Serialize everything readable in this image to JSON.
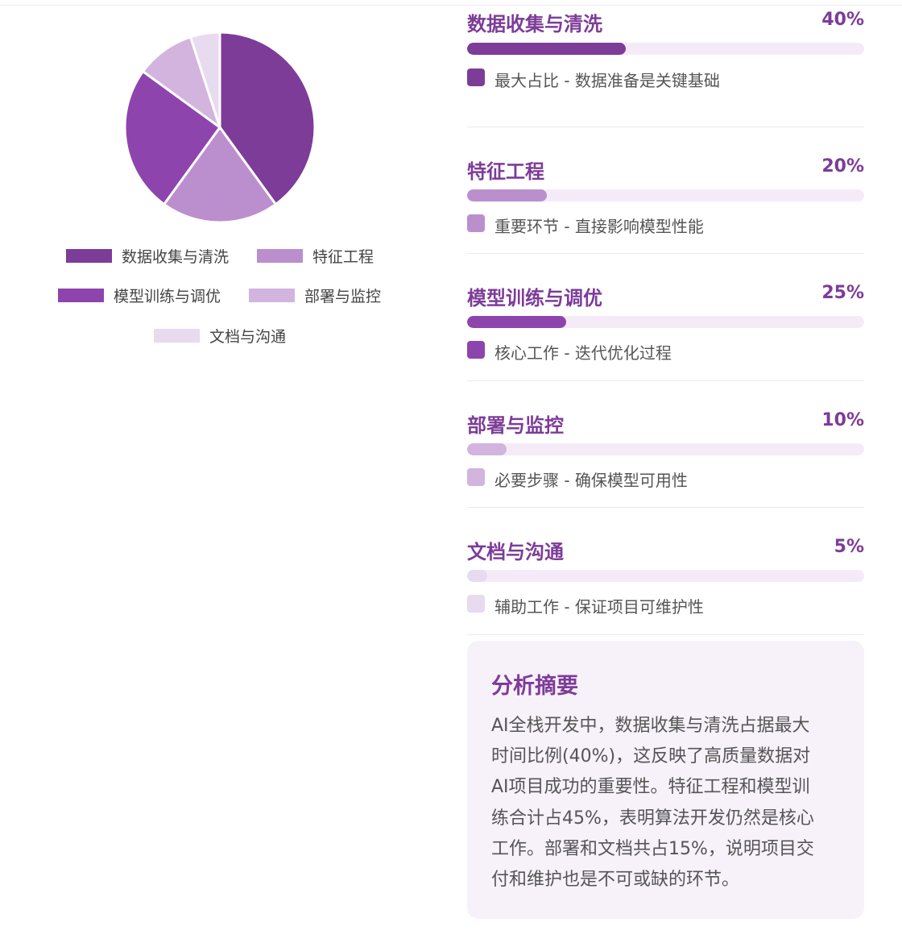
{
  "colors": {
    "accent": "#7d3c98",
    "track": "#f5ebf8",
    "divider": "#ebebeb",
    "summary_bg": "#f7f1f9"
  },
  "chart_data": {
    "type": "pie",
    "labels": [
      "数据收集与清洗",
      "特征工程",
      "模型训练与调优",
      "部署与监控",
      "文档与沟通"
    ],
    "values": [
      40,
      20,
      25,
      10,
      5
    ],
    "colors": [
      "#7d3c98",
      "#bb8fce",
      "#8e44ad",
      "#d2b4de",
      "#e8daef"
    ],
    "legend": "bottom"
  },
  "breakdown": [
    {
      "name": "数据收集与清洗",
      "pct_label": "40%",
      "value": 40,
      "color": "#7d3c98",
      "desc": "最大占比 - 数据准备是关键基础"
    },
    {
      "name": "特征工程",
      "pct_label": "20%",
      "value": 20,
      "color": "#bb8fce",
      "desc": "重要环节 - 直接影响模型性能"
    },
    {
      "name": "模型训练与调优",
      "pct_label": "25%",
      "value": 25,
      "color": "#8e44ad",
      "desc": "核心工作 - 迭代优化过程"
    },
    {
      "name": "部署与监控",
      "pct_label": "10%",
      "value": 10,
      "color": "#d2b4de",
      "desc": "必要步骤 - 确保模型可用性"
    },
    {
      "name": "文档与沟通",
      "pct_label": "5%",
      "value": 5,
      "color": "#e8daef",
      "desc": "辅助工作 - 保证项目可维护性"
    }
  ],
  "summary": {
    "title": "分析摘要",
    "lines": [
      "AI全栈开发中，数据收集与清洗占据最大",
      "时间比例(40%)，这反映了高质量数据对",
      "AI项目成功的重要性。特征工程和模型训",
      "练合计占45%，表明算法开发仍然是核心",
      "工作。部署和文档共占15%，说明项目交",
      "付和维护也是不可或缺的环节。"
    ]
  }
}
